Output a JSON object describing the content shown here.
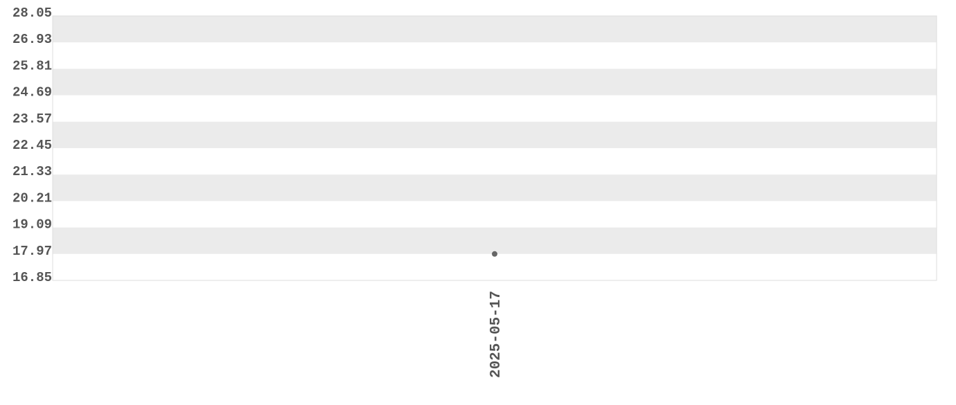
{
  "chart_data": {
    "type": "scatter",
    "title": "",
    "xlabel": "",
    "ylabel": "",
    "x": [
      "2025-05-17"
    ],
    "y": [
      17.97
    ],
    "ylim": [
      16.85,
      28.05
    ],
    "yticks": [
      "16.85",
      "17.97",
      "19.09",
      "20.21",
      "21.33",
      "22.45",
      "23.57",
      "24.69",
      "25.81",
      "26.93",
      "28.05"
    ],
    "xticks": [
      "2025-05-17"
    ],
    "grid": "alternating horizontal bands",
    "legend": "none",
    "colors": {
      "band": "#ebebeb",
      "point": "#666666",
      "text": "#555555",
      "border": "#dddddd"
    }
  }
}
